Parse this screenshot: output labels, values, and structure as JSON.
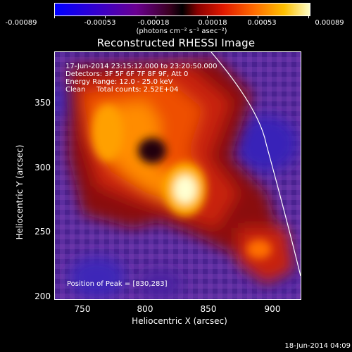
{
  "colorbar": {
    "ticks": [
      "-0.00089",
      "-0.00053",
      "-0.00018",
      "0.00018",
      "0.00053",
      "0.00089"
    ],
    "unit": "(photons cm⁻² s⁻¹ asec⁻²)"
  },
  "title": "Reconstructed RHESSI Image",
  "info": {
    "time_range": "17-Jun-2014 23:15:12.000 to 23:20:50.000",
    "detectors": "Detectors: 3F 5F 6F 7F 8F 9F, Att 0",
    "energy": "Energy Range: 12.0 - 25.0 keV",
    "clean": "Clean     Total counts: 2.52E+04",
    "peak": "Position of Peak = [830,283]"
  },
  "axes": {
    "xlabel": "Heliocentric X (arcsec)",
    "ylabel": "Heliocentric Y (arcsec)",
    "xticks": [
      "750",
      "800",
      "850",
      "900"
    ],
    "yticks": [
      "350",
      "300",
      "250",
      "200"
    ]
  },
  "timestamp": "18-Jun-2014 04:09",
  "colors": {
    "background": "#000000",
    "text": "#ffffff",
    "peak": "#ffffe0"
  }
}
